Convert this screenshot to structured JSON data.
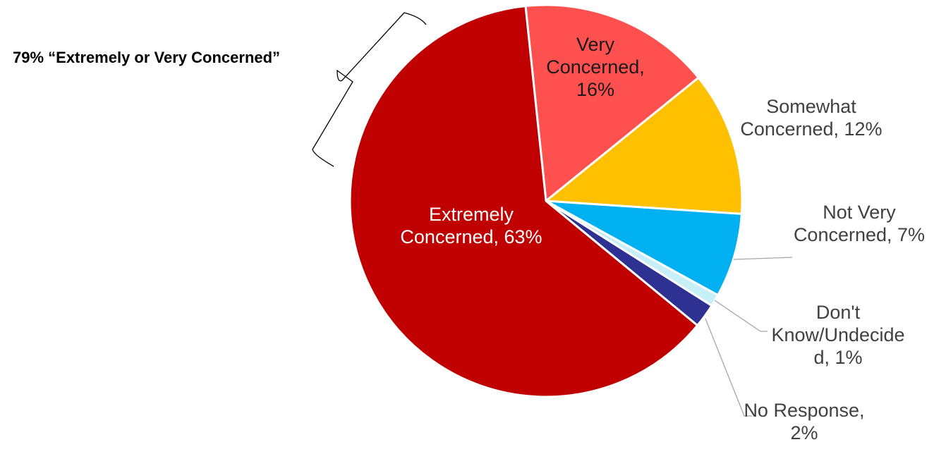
{
  "chart_data": {
    "type": "pie",
    "slices": [
      {
        "label_lines": [
          "Very",
          "Concerned,",
          "16%"
        ],
        "value": 16,
        "color": "#FF5050"
      },
      {
        "label_lines": [
          "Somewhat",
          "Concerned, 12%"
        ],
        "value": 12,
        "color": "#FFC000"
      },
      {
        "label_lines": [
          "Not Very",
          "Concerned, 7%"
        ],
        "value": 7,
        "color": "#00B0F0"
      },
      {
        "label_lines": [
          "Don't",
          "Know/Undecide",
          "d, 1%"
        ],
        "value": 1,
        "color": "#C6EFF7"
      },
      {
        "label_lines": [
          "No Response,",
          "2%"
        ],
        "value": 2,
        "color": "#2E3192"
      },
      {
        "label_lines": [
          "Extremely",
          "Concerned, 63%"
        ],
        "value": 63,
        "color": "#C00000"
      }
    ],
    "annotation": "79% “Extremely or Very Concerned”"
  }
}
